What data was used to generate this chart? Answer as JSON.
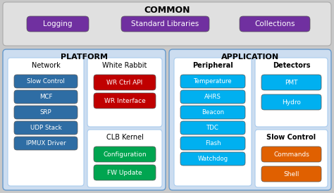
{
  "bg_color": "#c8c8c8",
  "common_bg": "#e0e0e0",
  "platform_bg": "#ccddf0",
  "application_bg": "#ccddf0",
  "inner_bg": "#ffffff",
  "purple_color": "#7030a0",
  "blue_dark": "#2e6da4",
  "blue_light": "#00b0f0",
  "red_color": "#c00000",
  "green_color": "#00a550",
  "orange_color": "#e06000",
  "text_white": "#ffffff",
  "text_black": "#000000",
  "common_title": "COMMON",
  "common_items": [
    "Logging",
    "Standard Libraries",
    "Collections"
  ],
  "platform_title": "PLATFORM",
  "application_title": "APPLICATION",
  "network_title": "Network",
  "network_items": [
    "Slow Control",
    "MCF",
    "SRP",
    "UDP Stack",
    "IPMUX Driver"
  ],
  "wr_title": "White Rabbit",
  "wr_items": [
    "WR Ctrl API",
    "WR Interface"
  ],
  "clb_title": "CLB Kernel",
  "clb_items": [
    "Configuration",
    "FW Update"
  ],
  "peripheral_title": "Peripheral",
  "peripheral_items": [
    "Temperature",
    "AHRS",
    "Beacon",
    "TDC",
    "Flash",
    "Watchdog"
  ],
  "detectors_title": "Detectors",
  "detectors_items": [
    "PMT",
    "Hydro"
  ],
  "slow_ctrl_title": "Slow Control",
  "slow_ctrl_items": [
    "Commands",
    "Shell"
  ]
}
